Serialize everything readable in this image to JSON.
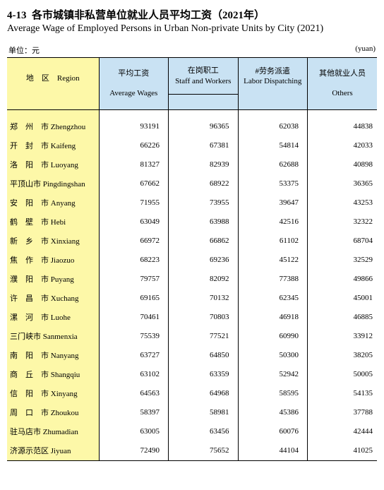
{
  "title": {
    "number": "4-13",
    "cn": "各市城镇非私营单位就业人员平均工资（2021年）",
    "en": "Average Wage of Employed Persons in Urban Non-private Units by City (2021)"
  },
  "unit": {
    "cn": "单位：元",
    "en": "(yuan)"
  },
  "columns": {
    "region": {
      "cn": "地　区",
      "en": "Region"
    },
    "avg": {
      "cn": "平均工资",
      "en": "Average Wages"
    },
    "staff": {
      "cn": "在岗职工",
      "en": "Staff and Workers"
    },
    "labor": {
      "cn": "#劳务派遣",
      "en": "Labor Dispatching"
    },
    "others": {
      "cn": "其他就业人员",
      "en": "Others"
    }
  },
  "rows": [
    {
      "cn": "郑　州　市",
      "en": "Zhengzhou",
      "avg": 93191,
      "staff": 96365,
      "labor": 62038,
      "others": 44838
    },
    {
      "cn": "开　封　市",
      "en": "Kaifeng",
      "avg": 66226,
      "staff": 67381,
      "labor": 54814,
      "others": 42033
    },
    {
      "cn": "洛　阳　市",
      "en": "Luoyang",
      "avg": 81327,
      "staff": 82939,
      "labor": 62688,
      "others": 40898
    },
    {
      "cn": "平顶山市",
      "en": "Pingdingshan",
      "avg": 67662,
      "staff": 68922,
      "labor": 53375,
      "others": 36365
    },
    {
      "cn": "安　阳　市",
      "en": "Anyang",
      "avg": 71955,
      "staff": 73955,
      "labor": 39647,
      "others": 43253
    },
    {
      "cn": "鹤　壁　市",
      "en": "Hebi",
      "avg": 63049,
      "staff": 63988,
      "labor": 42516,
      "others": 32322
    },
    {
      "cn": "新　乡　市",
      "en": "Xinxiang",
      "avg": 66972,
      "staff": 66862,
      "labor": 61102,
      "others": 68704
    },
    {
      "cn": "焦　作　市",
      "en": "Jiaozuo",
      "avg": 68223,
      "staff": 69236,
      "labor": 45122,
      "others": 32529
    },
    {
      "cn": "濮　阳　市",
      "en": "Puyang",
      "avg": 79757,
      "staff": 82092,
      "labor": 77388,
      "others": 49866
    },
    {
      "cn": "许　昌　市",
      "en": "Xuchang",
      "avg": 69165,
      "staff": 70132,
      "labor": 62345,
      "others": 45001
    },
    {
      "cn": "漯　河　市",
      "en": "Luohe",
      "avg": 70461,
      "staff": 70803,
      "labor": 46918,
      "others": 46885
    },
    {
      "cn": "三门峡市",
      "en": "Sanmenxia",
      "avg": 75539,
      "staff": 77521,
      "labor": 60990,
      "others": 33912
    },
    {
      "cn": "南　阳　市",
      "en": "Nanyang",
      "avg": 63727,
      "staff": 64850,
      "labor": 50300,
      "others": 38205
    },
    {
      "cn": "商　丘　市",
      "en": "Shangqiu",
      "avg": 63102,
      "staff": 63359,
      "labor": 52942,
      "others": 50005
    },
    {
      "cn": "信　阳　市",
      "en": "Xinyang",
      "avg": 64563,
      "staff": 64968,
      "labor": 58595,
      "others": 54135
    },
    {
      "cn": "周　口　市",
      "en": "Zhoukou",
      "avg": 58397,
      "staff": 58981,
      "labor": 45386,
      "others": 37788
    },
    {
      "cn": "驻马店市",
      "en": "Zhumadian",
      "avg": 63005,
      "staff": 63456,
      "labor": 60076,
      "others": 42444
    },
    {
      "cn": "济源示范区",
      "en": "Jiyuan",
      "avg": 72490,
      "staff": 75652,
      "labor": 44104,
      "others": 41025
    }
  ],
  "style": {
    "header_bg": "#c9e2f3",
    "region_bg": "#fdf8a8",
    "body_bg": "#ffffff",
    "border_color": "#000000",
    "font_body": 11,
    "font_title": 15
  }
}
